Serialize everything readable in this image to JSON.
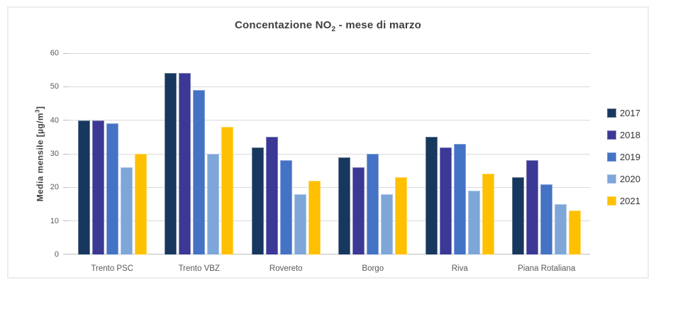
{
  "chart_data": {
    "type": "bar",
    "title": "Concentazione NO2 - mese di marzo",
    "title_parts": {
      "main": "Concentazione NO",
      "sub": "2",
      "rest": " - mese di marzo"
    },
    "ylabel": "Media mensile [µg/m3]",
    "ylabel_parts": {
      "main": "Media mensile [µg/m",
      "sup": "3",
      "rest": "]"
    },
    "xlabel": "",
    "ylim": [
      0,
      60
    ],
    "yticks": [
      0,
      10,
      20,
      30,
      40,
      50,
      60
    ],
    "grid": true,
    "legend_position": "right",
    "categories": [
      "Trento PSC",
      "Trento VBZ",
      "Rovereto",
      "Borgo",
      "Riva",
      "Piana Rotaliana"
    ],
    "series": [
      {
        "name": "2017",
        "color": "#17375E",
        "values": [
          40,
          54,
          32,
          29,
          35,
          23
        ]
      },
      {
        "name": "2018",
        "color": "#3B3896",
        "values": [
          40,
          54,
          35,
          26,
          32,
          28
        ]
      },
      {
        "name": "2019",
        "color": "#4472C4",
        "values": [
          39,
          49,
          28,
          30,
          33,
          21
        ]
      },
      {
        "name": "2020",
        "color": "#7EA6D9",
        "values": [
          26,
          30,
          18,
          18,
          19,
          15
        ]
      },
      {
        "name": "2021",
        "color": "#FFC000",
        "values": [
          30,
          38,
          22,
          23,
          24,
          13
        ]
      }
    ],
    "colors": {
      "gridline": "#D9D9D9",
      "axis_line": "#BFBFBF",
      "title_text": "#3F3F3F",
      "tick_text": "#595959",
      "legend_text": "#333333",
      "background": "#FFFFFF",
      "frame_border": "#ECECEC"
    }
  }
}
